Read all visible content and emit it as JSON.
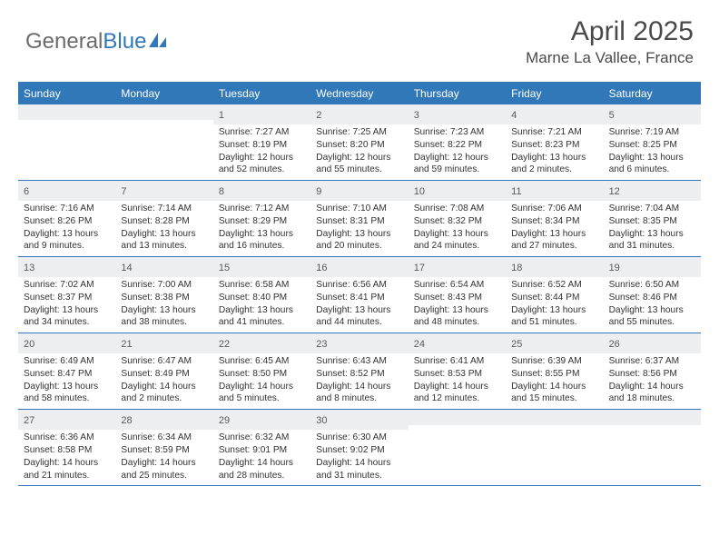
{
  "logo": {
    "part1": "General",
    "part2": "Blue"
  },
  "title": "April 2025",
  "subtitle": "Marne La Vallee, France",
  "header_color": "#3178b8",
  "daynum_bg": "#eceeef",
  "text_color": "#323232",
  "weekdays": [
    "Sunday",
    "Monday",
    "Tuesday",
    "Wednesday",
    "Thursday",
    "Friday",
    "Saturday"
  ],
  "weeks": [
    [
      {
        "empty": true
      },
      {
        "empty": true
      },
      {
        "n": "1",
        "sunrise": "7:27 AM",
        "sunset": "8:19 PM",
        "dl1": "Daylight: 12 hours",
        "dl2": "and 52 minutes."
      },
      {
        "n": "2",
        "sunrise": "7:25 AM",
        "sunset": "8:20 PM",
        "dl1": "Daylight: 12 hours",
        "dl2": "and 55 minutes."
      },
      {
        "n": "3",
        "sunrise": "7:23 AM",
        "sunset": "8:22 PM",
        "dl1": "Daylight: 12 hours",
        "dl2": "and 59 minutes."
      },
      {
        "n": "4",
        "sunrise": "7:21 AM",
        "sunset": "8:23 PM",
        "dl1": "Daylight: 13 hours",
        "dl2": "and 2 minutes."
      },
      {
        "n": "5",
        "sunrise": "7:19 AM",
        "sunset": "8:25 PM",
        "dl1": "Daylight: 13 hours",
        "dl2": "and 6 minutes."
      }
    ],
    [
      {
        "n": "6",
        "sunrise": "7:16 AM",
        "sunset": "8:26 PM",
        "dl1": "Daylight: 13 hours",
        "dl2": "and 9 minutes."
      },
      {
        "n": "7",
        "sunrise": "7:14 AM",
        "sunset": "8:28 PM",
        "dl1": "Daylight: 13 hours",
        "dl2": "and 13 minutes."
      },
      {
        "n": "8",
        "sunrise": "7:12 AM",
        "sunset": "8:29 PM",
        "dl1": "Daylight: 13 hours",
        "dl2": "and 16 minutes."
      },
      {
        "n": "9",
        "sunrise": "7:10 AM",
        "sunset": "8:31 PM",
        "dl1": "Daylight: 13 hours",
        "dl2": "and 20 minutes."
      },
      {
        "n": "10",
        "sunrise": "7:08 AM",
        "sunset": "8:32 PM",
        "dl1": "Daylight: 13 hours",
        "dl2": "and 24 minutes."
      },
      {
        "n": "11",
        "sunrise": "7:06 AM",
        "sunset": "8:34 PM",
        "dl1": "Daylight: 13 hours",
        "dl2": "and 27 minutes."
      },
      {
        "n": "12",
        "sunrise": "7:04 AM",
        "sunset": "8:35 PM",
        "dl1": "Daylight: 13 hours",
        "dl2": "and 31 minutes."
      }
    ],
    [
      {
        "n": "13",
        "sunrise": "7:02 AM",
        "sunset": "8:37 PM",
        "dl1": "Daylight: 13 hours",
        "dl2": "and 34 minutes."
      },
      {
        "n": "14",
        "sunrise": "7:00 AM",
        "sunset": "8:38 PM",
        "dl1": "Daylight: 13 hours",
        "dl2": "and 38 minutes."
      },
      {
        "n": "15",
        "sunrise": "6:58 AM",
        "sunset": "8:40 PM",
        "dl1": "Daylight: 13 hours",
        "dl2": "and 41 minutes."
      },
      {
        "n": "16",
        "sunrise": "6:56 AM",
        "sunset": "8:41 PM",
        "dl1": "Daylight: 13 hours",
        "dl2": "and 44 minutes."
      },
      {
        "n": "17",
        "sunrise": "6:54 AM",
        "sunset": "8:43 PM",
        "dl1": "Daylight: 13 hours",
        "dl2": "and 48 minutes."
      },
      {
        "n": "18",
        "sunrise": "6:52 AM",
        "sunset": "8:44 PM",
        "dl1": "Daylight: 13 hours",
        "dl2": "and 51 minutes."
      },
      {
        "n": "19",
        "sunrise": "6:50 AM",
        "sunset": "8:46 PM",
        "dl1": "Daylight: 13 hours",
        "dl2": "and 55 minutes."
      }
    ],
    [
      {
        "n": "20",
        "sunrise": "6:49 AM",
        "sunset": "8:47 PM",
        "dl1": "Daylight: 13 hours",
        "dl2": "and 58 minutes."
      },
      {
        "n": "21",
        "sunrise": "6:47 AM",
        "sunset": "8:49 PM",
        "dl1": "Daylight: 14 hours",
        "dl2": "and 2 minutes."
      },
      {
        "n": "22",
        "sunrise": "6:45 AM",
        "sunset": "8:50 PM",
        "dl1": "Daylight: 14 hours",
        "dl2": "and 5 minutes."
      },
      {
        "n": "23",
        "sunrise": "6:43 AM",
        "sunset": "8:52 PM",
        "dl1": "Daylight: 14 hours",
        "dl2": "and 8 minutes."
      },
      {
        "n": "24",
        "sunrise": "6:41 AM",
        "sunset": "8:53 PM",
        "dl1": "Daylight: 14 hours",
        "dl2": "and 12 minutes."
      },
      {
        "n": "25",
        "sunrise": "6:39 AM",
        "sunset": "8:55 PM",
        "dl1": "Daylight: 14 hours",
        "dl2": "and 15 minutes."
      },
      {
        "n": "26",
        "sunrise": "6:37 AM",
        "sunset": "8:56 PM",
        "dl1": "Daylight: 14 hours",
        "dl2": "and 18 minutes."
      }
    ],
    [
      {
        "n": "27",
        "sunrise": "6:36 AM",
        "sunset": "8:58 PM",
        "dl1": "Daylight: 14 hours",
        "dl2": "and 21 minutes."
      },
      {
        "n": "28",
        "sunrise": "6:34 AM",
        "sunset": "8:59 PM",
        "dl1": "Daylight: 14 hours",
        "dl2": "and 25 minutes."
      },
      {
        "n": "29",
        "sunrise": "6:32 AM",
        "sunset": "9:01 PM",
        "dl1": "Daylight: 14 hours",
        "dl2": "and 28 minutes."
      },
      {
        "n": "30",
        "sunrise": "6:30 AM",
        "sunset": "9:02 PM",
        "dl1": "Daylight: 14 hours",
        "dl2": "and 31 minutes."
      },
      {
        "empty": true
      },
      {
        "empty": true
      },
      {
        "empty": true
      }
    ]
  ]
}
